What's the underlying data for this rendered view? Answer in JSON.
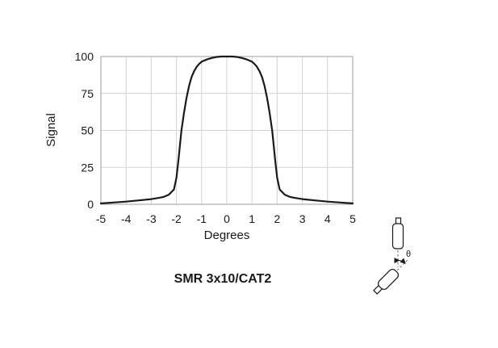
{
  "chart_data": {
    "type": "line",
    "title": "SMR 3x10/CAT2",
    "xlabel": "Degrees",
    "ylabel": "Signal",
    "xlim": [
      -5,
      5
    ],
    "ylim": [
      0,
      100
    ],
    "grid": true,
    "legend": "none",
    "x_ticks": [
      -5,
      -4,
      -3,
      -2,
      -1,
      0,
      1,
      2,
      3,
      4,
      5
    ],
    "y_ticks": [
      0,
      25,
      50,
      75,
      100
    ],
    "series": [
      {
        "name": "Signal",
        "x": [
          -5,
          -4.5,
          -4,
          -3.5,
          -3,
          -2.7,
          -2.5,
          -2.3,
          -2.1,
          -2,
          -1.92,
          -1.85,
          -1.8,
          -1.7,
          -1.6,
          -1.5,
          -1.4,
          -1.3,
          -1.2,
          -1.1,
          -1,
          -0.8,
          -0.6,
          -0.4,
          -0.2,
          0,
          0.2,
          0.4,
          0.6,
          0.8,
          1,
          1.1,
          1.2,
          1.3,
          1.4,
          1.5,
          1.6,
          1.7,
          1.8,
          1.85,
          1.92,
          2,
          2.1,
          2.3,
          2.5,
          2.7,
          3,
          3.5,
          4,
          4.5,
          5
        ],
        "y": [
          0.6,
          1.2,
          1.8,
          2.6,
          3.5,
          4.3,
          5,
          6.5,
          10,
          18,
          30,
          42,
          50,
          62,
          72,
          80,
          86,
          90,
          93,
          95,
          96.5,
          98,
          99,
          99.7,
          100,
          100,
          100,
          99.7,
          99,
          98,
          96.5,
          95,
          93,
          90,
          86,
          80,
          72,
          62,
          50,
          42,
          30,
          18,
          10,
          6.5,
          5,
          4.3,
          3.5,
          2.6,
          1.8,
          1.2,
          0.6
        ]
      }
    ]
  },
  "diagram": {
    "angle_label": "θ"
  },
  "colors": {
    "background": "#ffffff",
    "grid": "#d4d4d4",
    "panel_border": "#9e9e9e",
    "curve": "#1a1a1a",
    "text": "#1a1a1a",
    "diagram_stroke": "#1a1a1a"
  }
}
